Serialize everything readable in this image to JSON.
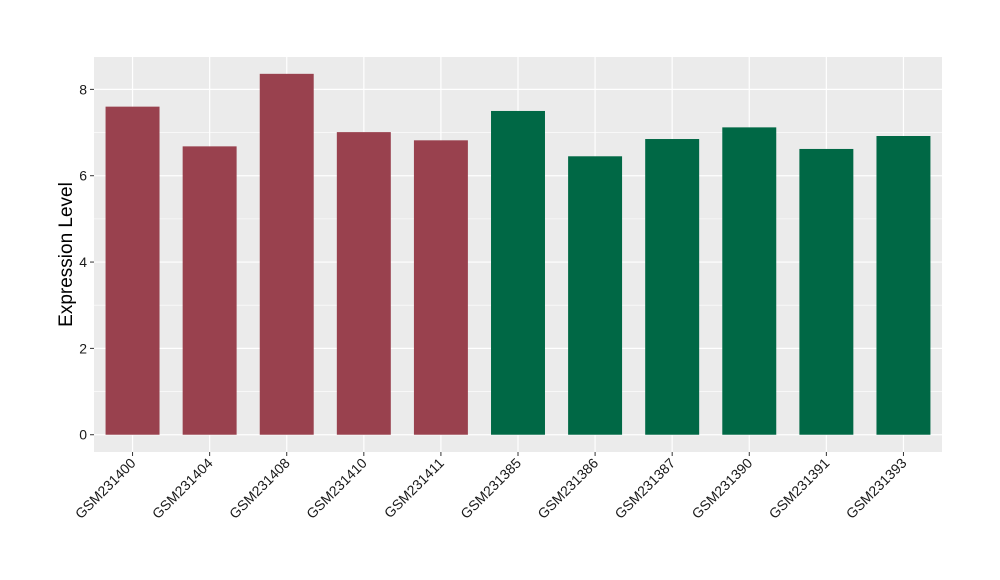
{
  "chart_data": {
    "type": "bar",
    "title": "",
    "xlabel": "",
    "ylabel": "Expression Level",
    "ylim": [
      -0.4,
      8.75
    ],
    "yticks": [
      0,
      2,
      4,
      6,
      8
    ],
    "grid": true,
    "categories": [
      "GSM231400",
      "GSM231404",
      "GSM231408",
      "GSM231410",
      "GSM231411",
      "GSM231385",
      "GSM231386",
      "GSM231387",
      "GSM231390",
      "GSM231391",
      "GSM231393"
    ],
    "values": [
      7.6,
      6.68,
      8.36,
      7.01,
      6.82,
      7.5,
      6.45,
      6.85,
      7.12,
      6.62,
      6.92
    ],
    "group_index": [
      0,
      0,
      0,
      0,
      0,
      1,
      1,
      1,
      1,
      1,
      1
    ],
    "group_colors": [
      "#99414E",
      "#006845"
    ],
    "panel_background": "#EBEBEB",
    "grid_color": "#FFFFFF"
  }
}
